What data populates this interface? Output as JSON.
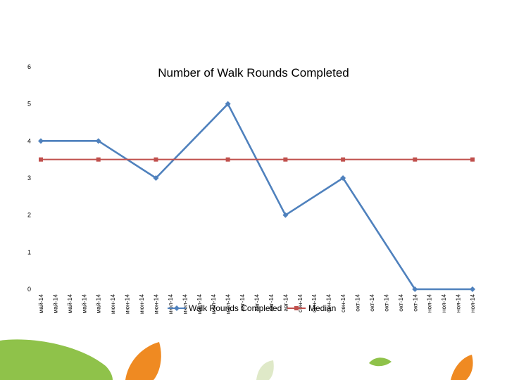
{
  "chart_data": {
    "type": "line",
    "title": "Number of Walk Rounds Completed",
    "ylim": [
      0,
      6
    ],
    "yticks": [
      0,
      1,
      2,
      3,
      4,
      5,
      6
    ],
    "grid": false,
    "legend_position": "bottom-center",
    "categories": [
      "май-14",
      "май-14",
      "май-14",
      "май-14",
      "май-14",
      "июн-14",
      "июн-14",
      "июн-14",
      "июн-14",
      "июл-14",
      "июл-14",
      "июл-14",
      "июл-14",
      "июл-14",
      "авг-14",
      "авг-14",
      "авг-14",
      "авг-14",
      "сен-14",
      "сен-14",
      "сен-14",
      "сен-14",
      "окт-14",
      "окт-14",
      "окт-14",
      "окт-14",
      "окт-14",
      "ноя-14",
      "ноя-14",
      "ноя-14",
      "ноя-14"
    ],
    "series": [
      {
        "name": "Walk Rounds Completed",
        "color": "#4f81bd",
        "marker": "diamond",
        "points": [
          {
            "index": 0,
            "value": 4
          },
          {
            "index": 4,
            "value": 4
          },
          {
            "index": 8,
            "value": 3
          },
          {
            "index": 13,
            "value": 5
          },
          {
            "index": 17,
            "value": 2
          },
          {
            "index": 21,
            "value": 3
          },
          {
            "index": 26,
            "value": 0
          },
          {
            "index": 30,
            "value": 0
          }
        ]
      },
      {
        "name": "Median",
        "color": "#c0504d",
        "marker": "square",
        "points": [
          {
            "index": 0,
            "value": 3.5
          },
          {
            "index": 4,
            "value": 3.5
          },
          {
            "index": 8,
            "value": 3.5
          },
          {
            "index": 13,
            "value": 3.5
          },
          {
            "index": 17,
            "value": 3.5
          },
          {
            "index": 21,
            "value": 3.5
          },
          {
            "index": 26,
            "value": 3.5
          },
          {
            "index": 30,
            "value": 3.5
          }
        ]
      }
    ]
  }
}
